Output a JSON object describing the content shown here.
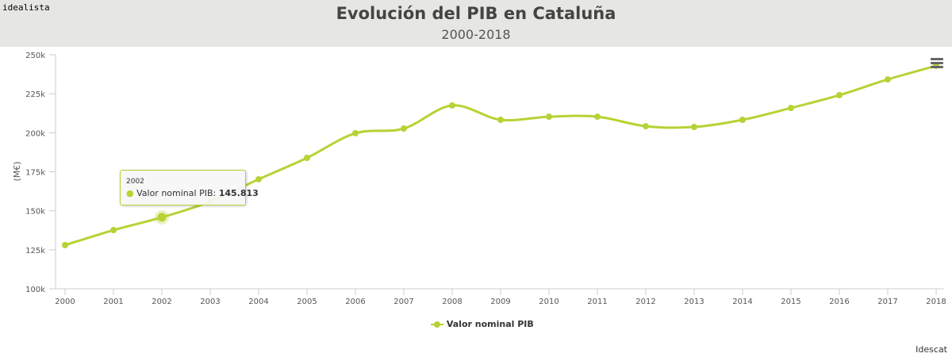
{
  "brand": "idealista",
  "credit": "Idescat",
  "chart_data": {
    "type": "line",
    "title": "Evolución del PIB en Cataluña",
    "subtitle": "2000-2018",
    "xlabel": "",
    "ylabel": "(M€)",
    "ylim": [
      100000,
      250000
    ],
    "yticks": [
      "100k",
      "125k",
      "150k",
      "175k",
      "200k",
      "225k",
      "250k"
    ],
    "categories": [
      "2000",
      "2001",
      "2002",
      "2003",
      "2004",
      "2005",
      "2006",
      "2007",
      "2008",
      "2009",
      "2010",
      "2011",
      "2012",
      "2013",
      "2014",
      "2015",
      "2016",
      "2017",
      "2018"
    ],
    "series": [
      {
        "name": "Valor nominal PIB",
        "color": "#b5d334",
        "values": [
          128000,
          137600,
          145813,
          155900,
          170200,
          183900,
          199700,
          202700,
          217500,
          208300,
          210300,
          210300,
          204200,
          203700,
          208300,
          215900,
          224100,
          234200,
          242900
        ]
      }
    ],
    "legend": "bottom-center",
    "grid": false,
    "tooltip": {
      "year": "2002",
      "label": "Valor nominal PIB: ",
      "value": "145.813"
    }
  }
}
